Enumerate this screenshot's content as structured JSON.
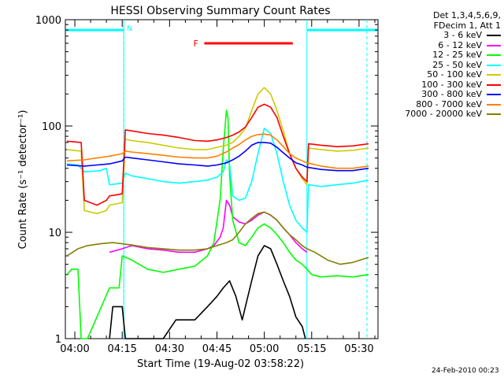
{
  "chart_data": {
    "type": "line",
    "title": "HESSI Observing Summary Count Rates",
    "xlabel": "Start Time (19-Aug-02 03:58:22)",
    "ylabel": "Count Rate (s⁻¹ detector⁻¹)",
    "y_scale": "log",
    "ylim": [
      1,
      1000
    ],
    "xlim_minutes_after_0358": [
      -1,
      98
    ],
    "x_tick_labels": [
      "04:00",
      "04:15",
      "04:30",
      "04:45",
      "05:00",
      "05:15",
      "05:30"
    ],
    "x_tick_minutes": [
      2,
      17,
      32,
      47,
      62,
      77,
      92
    ],
    "y_tick_labels": [
      "1",
      "10",
      "100",
      "1000"
    ],
    "y_tick_values": [
      1,
      10,
      100,
      1000
    ],
    "legend_header": [
      "Det 1,3,4,5,6,9,",
      "FDecim 1, Att 1"
    ],
    "night_boundaries_minutes": [
      17.5,
      75.5
    ],
    "night_dashed_minutes": [
      17.5,
      94.5
    ],
    "night_flag_label": "N",
    "flare_flag_label": "F",
    "flare_flag_minutes": [
      43,
      71
    ],
    "series": [
      {
        "name": "3 - 6 keV",
        "color": "#000000",
        "points": [
          [
            13,
            1
          ],
          [
            14,
            2
          ],
          [
            17,
            2
          ],
          [
            18,
            1
          ],
          [
            30,
            1
          ],
          [
            34,
            1.5
          ],
          [
            40,
            1.5
          ],
          [
            44,
            2
          ],
          [
            47,
            2.5
          ],
          [
            49,
            3
          ],
          [
            51,
            3.5
          ],
          [
            53,
            2.5
          ],
          [
            55,
            1.5
          ],
          [
            56,
            2
          ],
          [
            58,
            3.5
          ],
          [
            60,
            6
          ],
          [
            62,
            7.5
          ],
          [
            64,
            7
          ],
          [
            66,
            5
          ],
          [
            68,
            3.5
          ],
          [
            70,
            2.5
          ],
          [
            72,
            1.6
          ],
          [
            74,
            1.3
          ],
          [
            75,
            1
          ]
        ]
      },
      {
        "name": "6 - 12 keV",
        "color": "#ff00ff",
        "points": [
          [
            13,
            6.5
          ],
          [
            17,
            7
          ],
          [
            20,
            7.5
          ],
          [
            25,
            7
          ],
          [
            30,
            6.8
          ],
          [
            35,
            6.5
          ],
          [
            40,
            6.5
          ],
          [
            44,
            7
          ],
          [
            46,
            7.5
          ],
          [
            48,
            9
          ],
          [
            49,
            11
          ],
          [
            50,
            20
          ],
          [
            51,
            18
          ],
          [
            52,
            14
          ],
          [
            54,
            12.5
          ],
          [
            56,
            12
          ],
          [
            58,
            13
          ],
          [
            60,
            14.5
          ],
          [
            62,
            15.5
          ],
          [
            64,
            14.5
          ],
          [
            66,
            13
          ],
          [
            68,
            11
          ],
          [
            70,
            9.5
          ],
          [
            72,
            8
          ],
          [
            74,
            7
          ],
          [
            75.5,
            6.5
          ]
        ]
      },
      {
        "name": "12 - 25 keV",
        "color": "#00ff00",
        "points": [
          [
            -0.5,
            4
          ],
          [
            1,
            4.5
          ],
          [
            3,
            4.5
          ],
          [
            4,
            1
          ],
          [
            6,
            1
          ],
          [
            13,
            3
          ],
          [
            16,
            3
          ],
          [
            17,
            6
          ],
          [
            20,
            5.5
          ],
          [
            25,
            4.5
          ],
          [
            30,
            4.2
          ],
          [
            35,
            4.5
          ],
          [
            40,
            4.8
          ],
          [
            44,
            6
          ],
          [
            46,
            8
          ],
          [
            48,
            20
          ],
          [
            49,
            60
          ],
          [
            50,
            140
          ],
          [
            50.5,
            120
          ],
          [
            51,
            35
          ],
          [
            52,
            13
          ],
          [
            54,
            8
          ],
          [
            56,
            7.5
          ],
          [
            58,
            9
          ],
          [
            60,
            11
          ],
          [
            62,
            12
          ],
          [
            64,
            11
          ],
          [
            66,
            9.5
          ],
          [
            68,
            8
          ],
          [
            70,
            6.5
          ],
          [
            72,
            5.5
          ],
          [
            74,
            5
          ],
          [
            75.5,
            4.5
          ],
          [
            77,
            4
          ],
          [
            80,
            3.8
          ],
          [
            85,
            3.9
          ],
          [
            90,
            3.8
          ],
          [
            95,
            4
          ]
        ]
      },
      {
        "name": "25 - 50 keV",
        "color": "#00ffff",
        "points": [
          [
            -0.5,
            44
          ],
          [
            3,
            43
          ],
          [
            5,
            37
          ],
          [
            10,
            38
          ],
          [
            12,
            40
          ],
          [
            13,
            28
          ],
          [
            17,
            29
          ],
          [
            18,
            36
          ],
          [
            20,
            34
          ],
          [
            25,
            32
          ],
          [
            30,
            30
          ],
          [
            35,
            29
          ],
          [
            40,
            30
          ],
          [
            44,
            31
          ],
          [
            47,
            33
          ],
          [
            49,
            37
          ],
          [
            50,
            48
          ],
          [
            51,
            44
          ],
          [
            52,
            22
          ],
          [
            54,
            20
          ],
          [
            56,
            21
          ],
          [
            58,
            30
          ],
          [
            60,
            55
          ],
          [
            62,
            95
          ],
          [
            64,
            85
          ],
          [
            66,
            55
          ],
          [
            68,
            30
          ],
          [
            70,
            18
          ],
          [
            72,
            13
          ],
          [
            74,
            11
          ],
          [
            75.5,
            10
          ],
          [
            76,
            28
          ],
          [
            80,
            27
          ],
          [
            85,
            28
          ],
          [
            90,
            29
          ],
          [
            95,
            31
          ]
        ]
      },
      {
        "name": "50 - 100 keV",
        "color": "#cccc00",
        "points": [
          [
            -0.5,
            60
          ],
          [
            4,
            58
          ],
          [
            5,
            16
          ],
          [
            9,
            15
          ],
          [
            12,
            16
          ],
          [
            13,
            18
          ],
          [
            17,
            19
          ],
          [
            18,
            75
          ],
          [
            20,
            73
          ],
          [
            25,
            70
          ],
          [
            30,
            66
          ],
          [
            35,
            62
          ],
          [
            40,
            60
          ],
          [
            44,
            60
          ],
          [
            47,
            63
          ],
          [
            50,
            66
          ],
          [
            52,
            70
          ],
          [
            54,
            80
          ],
          [
            56,
            95
          ],
          [
            58,
            140
          ],
          [
            60,
            200
          ],
          [
            62,
            230
          ],
          [
            64,
            200
          ],
          [
            66,
            140
          ],
          [
            68,
            90
          ],
          [
            70,
            55
          ],
          [
            72,
            40
          ],
          [
            74,
            32
          ],
          [
            75.5,
            28
          ],
          [
            76,
            62
          ],
          [
            80,
            60
          ],
          [
            85,
            58
          ],
          [
            90,
            59
          ],
          [
            95,
            62
          ]
        ]
      },
      {
        "name": "100 - 300 keV",
        "color": "#ff0000",
        "points": [
          [
            -0.5,
            72
          ],
          [
            4,
            70
          ],
          [
            5,
            20
          ],
          [
            9,
            18
          ],
          [
            12,
            20
          ],
          [
            13,
            22
          ],
          [
            17,
            23
          ],
          [
            18,
            92
          ],
          [
            20,
            90
          ],
          [
            25,
            85
          ],
          [
            30,
            82
          ],
          [
            35,
            78
          ],
          [
            40,
            73
          ],
          [
            44,
            72
          ],
          [
            47,
            74
          ],
          [
            50,
            78
          ],
          [
            52,
            82
          ],
          [
            54,
            88
          ],
          [
            56,
            98
          ],
          [
            58,
            120
          ],
          [
            60,
            150
          ],
          [
            62,
            160
          ],
          [
            64,
            150
          ],
          [
            66,
            120
          ],
          [
            68,
            80
          ],
          [
            70,
            55
          ],
          [
            72,
            40
          ],
          [
            74,
            33
          ],
          [
            75.5,
            30
          ],
          [
            76,
            68
          ],
          [
            80,
            66
          ],
          [
            85,
            64
          ],
          [
            90,
            65
          ],
          [
            95,
            68
          ]
        ]
      },
      {
        "name": "300 - 800 keV",
        "color": "#0000ff",
        "points": [
          [
            -0.5,
            43
          ],
          [
            5,
            42
          ],
          [
            9,
            43
          ],
          [
            13,
            44
          ],
          [
            17,
            47
          ],
          [
            18,
            51
          ],
          [
            20,
            50
          ],
          [
            25,
            48
          ],
          [
            30,
            46
          ],
          [
            35,
            44
          ],
          [
            40,
            43
          ],
          [
            44,
            42
          ],
          [
            47,
            43
          ],
          [
            50,
            45
          ],
          [
            52,
            48
          ],
          [
            54,
            52
          ],
          [
            56,
            58
          ],
          [
            58,
            66
          ],
          [
            60,
            70
          ],
          [
            62,
            70
          ],
          [
            64,
            69
          ],
          [
            66,
            63
          ],
          [
            68,
            56
          ],
          [
            70,
            50
          ],
          [
            72,
            45
          ],
          [
            74,
            43
          ],
          [
            75.5,
            41
          ],
          [
            80,
            39
          ],
          [
            85,
            38
          ],
          [
            90,
            38
          ],
          [
            95,
            40
          ]
        ]
      },
      {
        "name": "800 - 7000 keV",
        "color": "#ff8000",
        "points": [
          [
            -0.5,
            47
          ],
          [
            5,
            48
          ],
          [
            9,
            50
          ],
          [
            13,
            52
          ],
          [
            17,
            55
          ],
          [
            18,
            58
          ],
          [
            20,
            57
          ],
          [
            25,
            55
          ],
          [
            30,
            53
          ],
          [
            35,
            51
          ],
          [
            40,
            50
          ],
          [
            44,
            50
          ],
          [
            47,
            52
          ],
          [
            50,
            57
          ],
          [
            52,
            62
          ],
          [
            54,
            67
          ],
          [
            56,
            74
          ],
          [
            58,
            80
          ],
          [
            60,
            83
          ],
          [
            62,
            84
          ],
          [
            64,
            82
          ],
          [
            66,
            74
          ],
          [
            68,
            64
          ],
          [
            70,
            55
          ],
          [
            72,
            50
          ],
          [
            74,
            47
          ],
          [
            75.5,
            45
          ],
          [
            80,
            42
          ],
          [
            85,
            40
          ],
          [
            90,
            40
          ],
          [
            95,
            42
          ]
        ]
      },
      {
        "name": "7000 - 20000 keV",
        "color": "#808000",
        "points": [
          [
            -0.5,
            6
          ],
          [
            3,
            7
          ],
          [
            6,
            7.5
          ],
          [
            10,
            7.8
          ],
          [
            14,
            8
          ],
          [
            17,
            7.8
          ],
          [
            20,
            7.6
          ],
          [
            25,
            7.2
          ],
          [
            30,
            7
          ],
          [
            35,
            6.8
          ],
          [
            40,
            6.8
          ],
          [
            44,
            7
          ],
          [
            47,
            7.5
          ],
          [
            50,
            8
          ],
          [
            52,
            8.5
          ],
          [
            54,
            10
          ],
          [
            56,
            12
          ],
          [
            58,
            13.5
          ],
          [
            60,
            15
          ],
          [
            62,
            15.5
          ],
          [
            64,
            14.5
          ],
          [
            66,
            13
          ],
          [
            68,
            11
          ],
          [
            70,
            9.5
          ],
          [
            72,
            8.5
          ],
          [
            74,
            7.5
          ],
          [
            75.5,
            7
          ],
          [
            78,
            6.5
          ],
          [
            82,
            5.5
          ],
          [
            86,
            5
          ],
          [
            90,
            5.2
          ],
          [
            95,
            5.8
          ]
        ]
      }
    ]
  },
  "footer": {
    "date": "24-Feb-2010 00:23"
  }
}
